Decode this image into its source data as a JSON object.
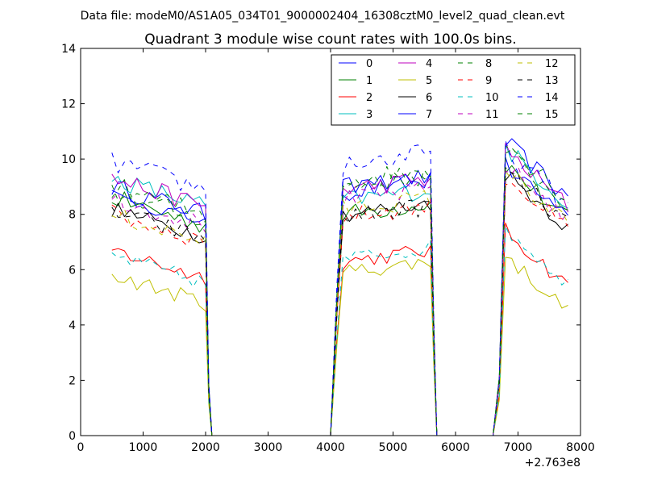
{
  "chart_data": {
    "type": "line",
    "suptitle": "Data file: modeM0/AS1A05_034T01_9000002404_16308cztM0_level2_quad_clean.evt",
    "title": "Quadrant 3 module wise count rates with 100.0s bins.",
    "xlabel": "",
    "ylabel": "",
    "x_offset_label": "+2.763e8",
    "xlim": [
      0,
      8000
    ],
    "ylim": [
      0,
      14
    ],
    "x_ticks": [
      0,
      1000,
      2000,
      3000,
      4000,
      5000,
      6000,
      7000,
      8000
    ],
    "y_ticks": [
      0,
      2,
      4,
      6,
      8,
      10,
      12,
      14
    ],
    "legend_position": "top-right",
    "legend_columns": 4,
    "grid": false,
    "segments": [
      {
        "x_start": 500,
        "x_end": 2000
      },
      {
        "x_start": 4200,
        "x_end": 5600
      },
      {
        "x_start": 6800,
        "x_end": 7800
      }
    ],
    "gap_points": [
      2100,
      2200,
      4000,
      4100,
      5700,
      5800,
      6500,
      6600,
      6700
    ],
    "edge_points": [
      {
        "x": 2100,
        "frac": 0.25
      },
      {
        "x": 4100,
        "frac": 0.55
      },
      {
        "x": 5700,
        "frac": 0.25
      },
      {
        "x": 6700,
        "frac": 0.2
      }
    ],
    "series": [
      {
        "name": "0",
        "color": "#0000ff",
        "dash": false,
        "levels": [
          9.0,
          8.8,
          10.6
        ],
        "noise": 0.35
      },
      {
        "name": "1",
        "color": "#008000",
        "dash": false,
        "levels": [
          8.6,
          8.0,
          9.8
        ],
        "noise": 0.35
      },
      {
        "name": "2",
        "color": "#ff0000",
        "dash": false,
        "levels": [
          6.7,
          6.3,
          7.4
        ],
        "noise": 0.3
      },
      {
        "name": "3",
        "color": "#00bfbf",
        "dash": false,
        "levels": [
          9.3,
          8.5,
          10.4
        ],
        "noise": 0.35
      },
      {
        "name": "4",
        "color": "#bf00bf",
        "dash": false,
        "levels": [
          9.3,
          8.9,
          10.3
        ],
        "noise": 0.35
      },
      {
        "name": "5",
        "color": "#bfbf00",
        "dash": false,
        "levels": [
          5.8,
          5.9,
          6.5
        ],
        "noise": 0.3
      },
      {
        "name": "6",
        "color": "#000000",
        "dash": false,
        "levels": [
          8.2,
          8.0,
          9.5
        ],
        "noise": 0.3
      },
      {
        "name": "7",
        "color": "#0000ff",
        "dash": false,
        "levels": [
          8.7,
          9.0,
          9.8
        ],
        "noise": 0.3
      },
      {
        "name": "8",
        "color": "#008000",
        "dash": true,
        "levels": [
          8.8,
          9.0,
          10.3
        ],
        "noise": 0.35
      },
      {
        "name": "9",
        "color": "#ff0000",
        "dash": true,
        "levels": [
          8.0,
          7.9,
          9.4
        ],
        "noise": 0.35
      },
      {
        "name": "10",
        "color": "#00bfbf",
        "dash": true,
        "levels": [
          6.5,
          6.4,
          7.5
        ],
        "noise": 0.3
      },
      {
        "name": "11",
        "color": "#bf00bf",
        "dash": true,
        "levels": [
          8.6,
          8.5,
          9.8
        ],
        "noise": 0.35
      },
      {
        "name": "12",
        "color": "#bfbf00",
        "dash": true,
        "levels": [
          8.0,
          8.2,
          9.6
        ],
        "noise": 0.35
      },
      {
        "name": "13",
        "color": "#000000",
        "dash": true,
        "levels": [
          8.1,
          7.9,
          9.6
        ],
        "noise": 0.35
      },
      {
        "name": "14",
        "color": "#0000ff",
        "dash": true,
        "levels": [
          9.9,
          9.8,
          10.3
        ],
        "noise": 0.4
      },
      {
        "name": "15",
        "color": "#008000",
        "dash": true,
        "levels": [
          9.0,
          9.2,
          10.6
        ],
        "noise": 0.4
      }
    ]
  }
}
